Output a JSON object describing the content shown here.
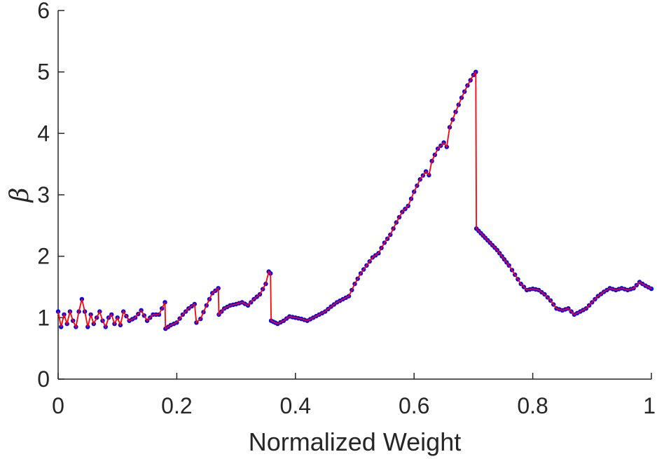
{
  "chart_data": {
    "type": "line",
    "xlabel": "Normalized Weight",
    "ylabel": "β",
    "xlim": [
      0,
      1
    ],
    "ylim": [
      0,
      6
    ],
    "xticks": [
      0,
      0.2,
      0.4,
      0.6,
      0.8,
      1
    ],
    "xtick_labels": [
      "0",
      "0.2",
      "0.4",
      "0.6",
      "0.8",
      "1"
    ],
    "yticks": [
      0,
      1,
      2,
      3,
      4,
      5,
      6
    ],
    "ytick_labels": [
      "0",
      "1",
      "2",
      "3",
      "4",
      "5",
      "6"
    ],
    "grid": false,
    "line_color": "#ff0000",
    "marker_color": "#0000ff",
    "series": [
      {
        "x": [
          0,
          0.005,
          0.01,
          0.015,
          0.02,
          0.025,
          0.03,
          0.035,
          0.04,
          0.045,
          0.05,
          0.055,
          0.06,
          0.065,
          0.07,
          0.075,
          0.08,
          0.085,
          0.09,
          0.095,
          0.1,
          0.105,
          0.11,
          0.12,
          0.13,
          0.14,
          0.15,
          0.16,
          0.17,
          0.18,
          0.181,
          0.19,
          0.2,
          0.21,
          0.22,
          0.23,
          0.233,
          0.24,
          0.25,
          0.26,
          0.27,
          0.271,
          0.28,
          0.29,
          0.3,
          0.31,
          0.32,
          0.33,
          0.34,
          0.35,
          0.355,
          0.358,
          0.359,
          0.37,
          0.38,
          0.39,
          0.4,
          0.41,
          0.42,
          0.43,
          0.44,
          0.45,
          0.46,
          0.47,
          0.48,
          0.49,
          0.5,
          0.51,
          0.52,
          0.53,
          0.54,
          0.55,
          0.56,
          0.57,
          0.58,
          0.59,
          0.6,
          0.61,
          0.62,
          0.625,
          0.63,
          0.64,
          0.65,
          0.655,
          0.66,
          0.67,
          0.68,
          0.69,
          0.7,
          0.704,
          0.705,
          0.72,
          0.74,
          0.76,
          0.77,
          0.78,
          0.79,
          0.8,
          0.81,
          0.82,
          0.83,
          0.84,
          0.85,
          0.86,
          0.87,
          0.88,
          0.89,
          0.9,
          0.91,
          0.92,
          0.93,
          0.94,
          0.95,
          0.96,
          0.97,
          0.98,
          0.99,
          1.0
        ],
        "y": [
          1.1,
          0.85,
          1.05,
          0.9,
          1.1,
          0.95,
          0.85,
          1.1,
          1.3,
          1.1,
          0.85,
          1.05,
          0.9,
          1.0,
          1.1,
          0.95,
          0.85,
          1.0,
          1.05,
          0.9,
          1.0,
          0.88,
          1.1,
          0.95,
          1.0,
          1.12,
          0.95,
          1.05,
          1.05,
          1.25,
          0.82,
          0.88,
          0.92,
          1.05,
          1.15,
          1.22,
          0.92,
          0.98,
          1.2,
          1.4,
          1.48,
          1.05,
          1.15,
          1.2,
          1.22,
          1.25,
          1.2,
          1.3,
          1.38,
          1.55,
          1.75,
          1.72,
          0.95,
          0.9,
          0.95,
          1.02,
          1.0,
          0.98,
          0.95,
          1.0,
          1.05,
          1.1,
          1.18,
          1.25,
          1.3,
          1.35,
          1.55,
          1.72,
          1.85,
          1.98,
          2.05,
          2.22,
          2.35,
          2.55,
          2.72,
          2.82,
          3.05,
          3.25,
          3.38,
          3.32,
          3.55,
          3.75,
          3.85,
          3.78,
          4.1,
          4.35,
          4.58,
          4.78,
          4.95,
          5.0,
          2.45,
          2.3,
          2.1,
          1.85,
          1.7,
          1.55,
          1.45,
          1.47,
          1.45,
          1.38,
          1.28,
          1.15,
          1.12,
          1.15,
          1.05,
          1.1,
          1.15,
          1.25,
          1.35,
          1.42,
          1.48,
          1.45,
          1.48,
          1.45,
          1.48,
          1.58,
          1.52,
          1.47
        ]
      }
    ]
  }
}
